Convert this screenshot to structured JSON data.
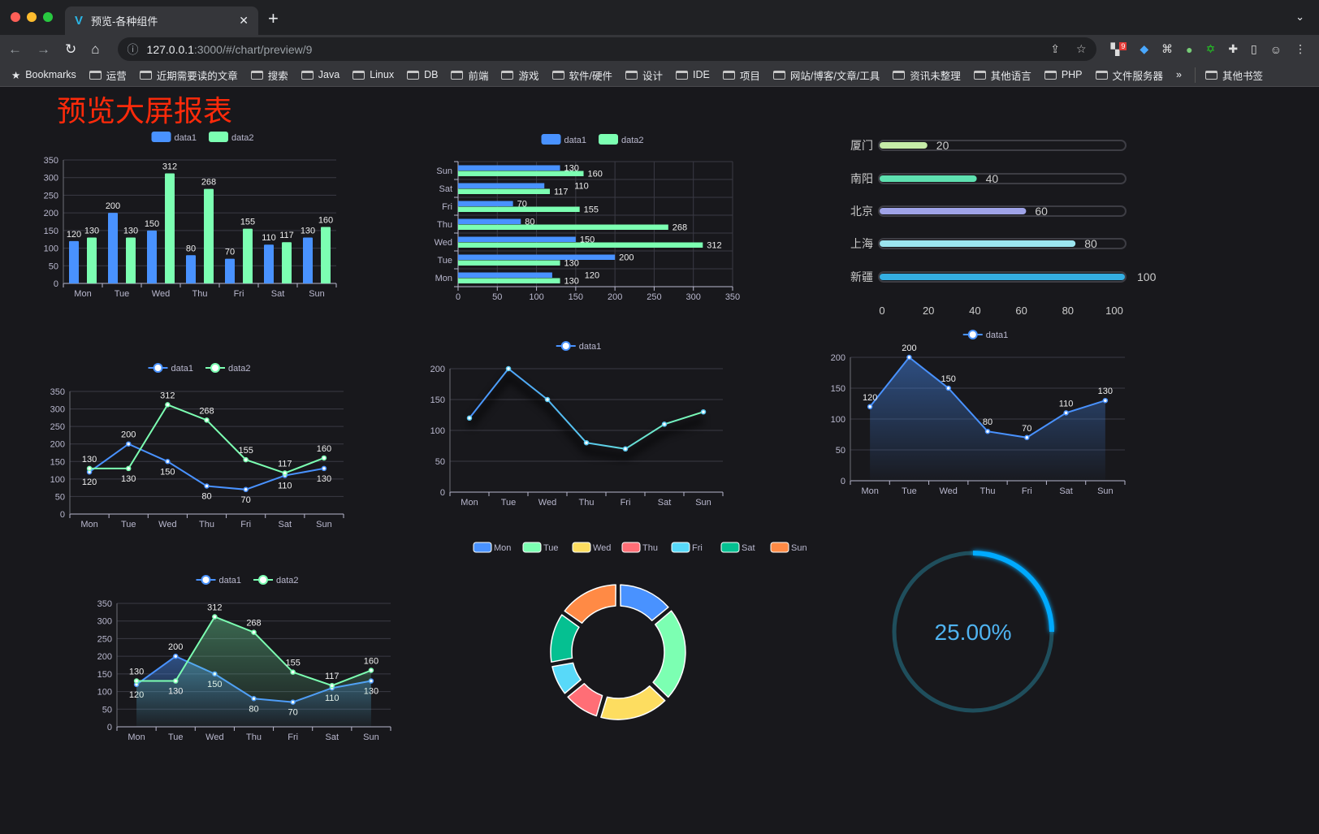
{
  "browser": {
    "tab_title": "预览-各种组件",
    "url_host": "127.0.0.1",
    "url_rest": ":3000/#/chart/preview/9",
    "bookmarks": [
      "Bookmarks",
      "运营",
      "近期需要读的文章",
      "搜索",
      "Java",
      "Linux",
      "DB",
      "前端",
      "游戏",
      "软件/硬件",
      "设计",
      "IDE",
      "项目",
      "网站/博客/文章/工具",
      "资讯未整理",
      "其他语言",
      "PHP",
      "文件服务器"
    ],
    "overflow": "»",
    "other_bookmarks": "其他书签",
    "extension_badge": "9"
  },
  "page": {
    "title": "预览大屏报表",
    "title_color": "#ff2a0a"
  },
  "colors": {
    "data1": "#4992ff",
    "data2": "#7cffb2",
    "pie": [
      "#4992ff",
      "#7cffb2",
      "#fddd60",
      "#ff6e76",
      "#58d9f9",
      "#05c091",
      "#ff8a45"
    ],
    "progress": [
      "#c6eca8",
      "#5ee0b0",
      "#9fa3e8",
      "#9be5ef",
      "#34aee2"
    ],
    "gauge": "#00aaff",
    "gauge_track": "#1f4e5c"
  },
  "chart_data": [
    {
      "type": "bar",
      "categories": [
        "Mon",
        "Tue",
        "Wed",
        "Thu",
        "Fri",
        "Sat",
        "Sun"
      ],
      "ylim": [
        0,
        350
      ],
      "yticks": [
        0,
        50,
        100,
        150,
        200,
        250,
        300,
        350
      ],
      "legend": "top",
      "grid": true,
      "series": [
        {
          "name": "data1",
          "values": [
            120,
            200,
            150,
            80,
            70,
            110,
            130
          ]
        },
        {
          "name": "data2",
          "values": [
            130,
            130,
            312,
            268,
            155,
            117,
            160
          ]
        }
      ]
    },
    {
      "type": "bar",
      "orientation": "horizontal",
      "categories": [
        "Mon",
        "Tue",
        "Wed",
        "Thu",
        "Fri",
        "Sat",
        "Sun"
      ],
      "xlim": [
        0,
        350
      ],
      "xticks": [
        0,
        50,
        100,
        150,
        200,
        250,
        300,
        350
      ],
      "legend": "top",
      "grid": true,
      "series": [
        {
          "name": "data1",
          "values": [
            120,
            200,
            150,
            80,
            70,
            110,
            130
          ]
        },
        {
          "name": "data2",
          "values": [
            130,
            130,
            312,
            268,
            155,
            117,
            160
          ]
        }
      ]
    },
    {
      "type": "bar",
      "orientation": "horizontal",
      "style": "progress",
      "categories": [
        "厦门",
        "南阳",
        "北京",
        "上海",
        "新疆"
      ],
      "values": [
        20,
        40,
        60,
        80,
        100
      ],
      "xlim": [
        0,
        100
      ],
      "xticks": [
        0,
        20,
        40,
        60,
        80,
        100
      ]
    },
    {
      "type": "line",
      "categories": [
        "Mon",
        "Tue",
        "Wed",
        "Thu",
        "Fri",
        "Sat",
        "Sun"
      ],
      "ylim": [
        0,
        350
      ],
      "yticks": [
        0,
        50,
        100,
        150,
        200,
        250,
        300,
        350
      ],
      "legend": "top",
      "grid": true,
      "series": [
        {
          "name": "data1",
          "values": [
            120,
            200,
            150,
            80,
            70,
            110,
            130
          ]
        },
        {
          "name": "data2",
          "values": [
            130,
            130,
            312,
            268,
            155,
            117,
            160
          ]
        }
      ]
    },
    {
      "type": "line",
      "categories": [
        "Mon",
        "Tue",
        "Wed",
        "Thu",
        "Fri",
        "Sat",
        "Sun"
      ],
      "ylim": [
        0,
        200
      ],
      "yticks": [
        0,
        50,
        100,
        150,
        200
      ],
      "legend": "top",
      "grid": true,
      "series": [
        {
          "name": "data1",
          "values": [
            120,
            200,
            150,
            80,
            70,
            110,
            130
          ]
        }
      ]
    },
    {
      "type": "area",
      "categories": [
        "Mon",
        "Tue",
        "Wed",
        "Thu",
        "Fri",
        "Sat",
        "Sun"
      ],
      "ylim": [
        0,
        200
      ],
      "yticks": [
        0,
        50,
        100,
        150,
        200
      ],
      "legend": "top",
      "grid": true,
      "series": [
        {
          "name": "data1",
          "values": [
            120,
            200,
            150,
            80,
            70,
            110,
            130
          ]
        }
      ]
    },
    {
      "type": "area",
      "categories": [
        "Mon",
        "Tue",
        "Wed",
        "Thu",
        "Fri",
        "Sat",
        "Sun"
      ],
      "ylim": [
        0,
        350
      ],
      "yticks": [
        0,
        50,
        100,
        150,
        200,
        250,
        300,
        350
      ],
      "legend": "top",
      "grid": true,
      "series": [
        {
          "name": "data1",
          "values": [
            120,
            200,
            150,
            80,
            70,
            110,
            130
          ]
        },
        {
          "name": "data2",
          "values": [
            130,
            130,
            312,
            268,
            155,
            117,
            160
          ]
        }
      ]
    },
    {
      "type": "pie",
      "style": "donut",
      "legend": "top",
      "categories": [
        "Mon",
        "Tue",
        "Wed",
        "Thu",
        "Fri",
        "Sat",
        "Sun"
      ],
      "values": [
        120,
        200,
        150,
        80,
        70,
        110,
        130
      ]
    },
    {
      "type": "gauge",
      "value": 0.25,
      "label": "25.00%"
    }
  ]
}
